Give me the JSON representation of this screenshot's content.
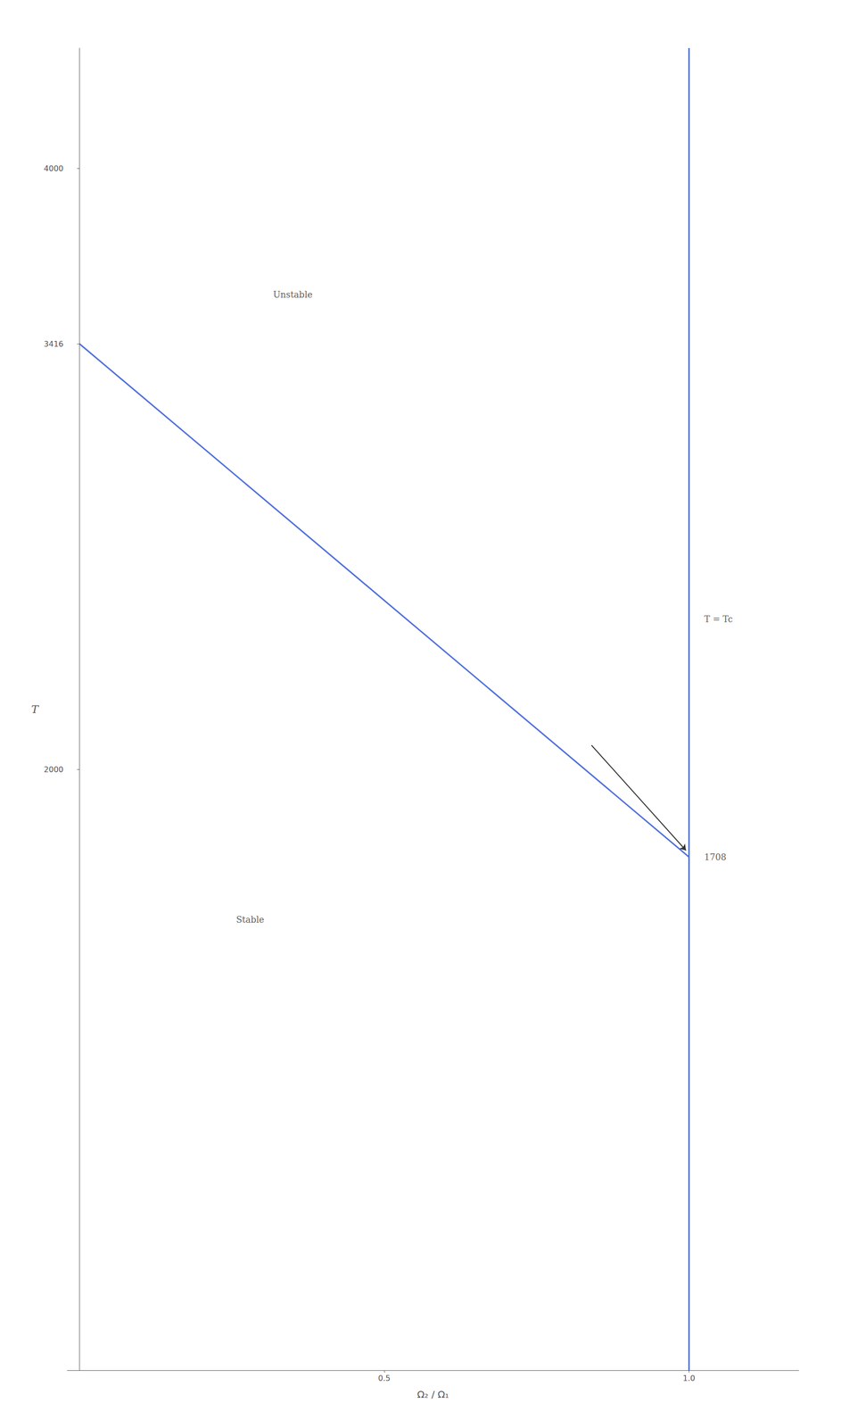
{
  "chart_data": {
    "type": "line",
    "x": [
      0.0,
      1.0
    ],
    "values": [
      3416,
      1708
    ],
    "xlabel": "Ω₂ / Ω₁",
    "ylabel": "T",
    "xlim": [
      -0.02,
      1.18
    ],
    "ylim": [
      0,
      4400
    ],
    "xticks": [
      0.5,
      {
        "value": 1.0,
        "label": "1.0"
      }
    ],
    "yticks": [
      2000,
      3416,
      4000
    ],
    "grid": false,
    "vlines": [
      1.0
    ],
    "annotations": [
      {
        "text": "Unstable",
        "x": 0.35,
        "y": 3580,
        "align": "center"
      },
      {
        "text": "Stable",
        "x": 0.28,
        "y": 1500,
        "align": "center"
      },
      {
        "text": "T = Tc",
        "x": 1.025,
        "y": 2500,
        "align": "left"
      },
      {
        "text": "1708",
        "x": 1.025,
        "y": 1708,
        "align": "left"
      }
    ],
    "arrows": [
      {
        "from": [
          0.84,
          2080
        ],
        "to": [
          0.995,
          1730
        ]
      }
    ]
  }
}
